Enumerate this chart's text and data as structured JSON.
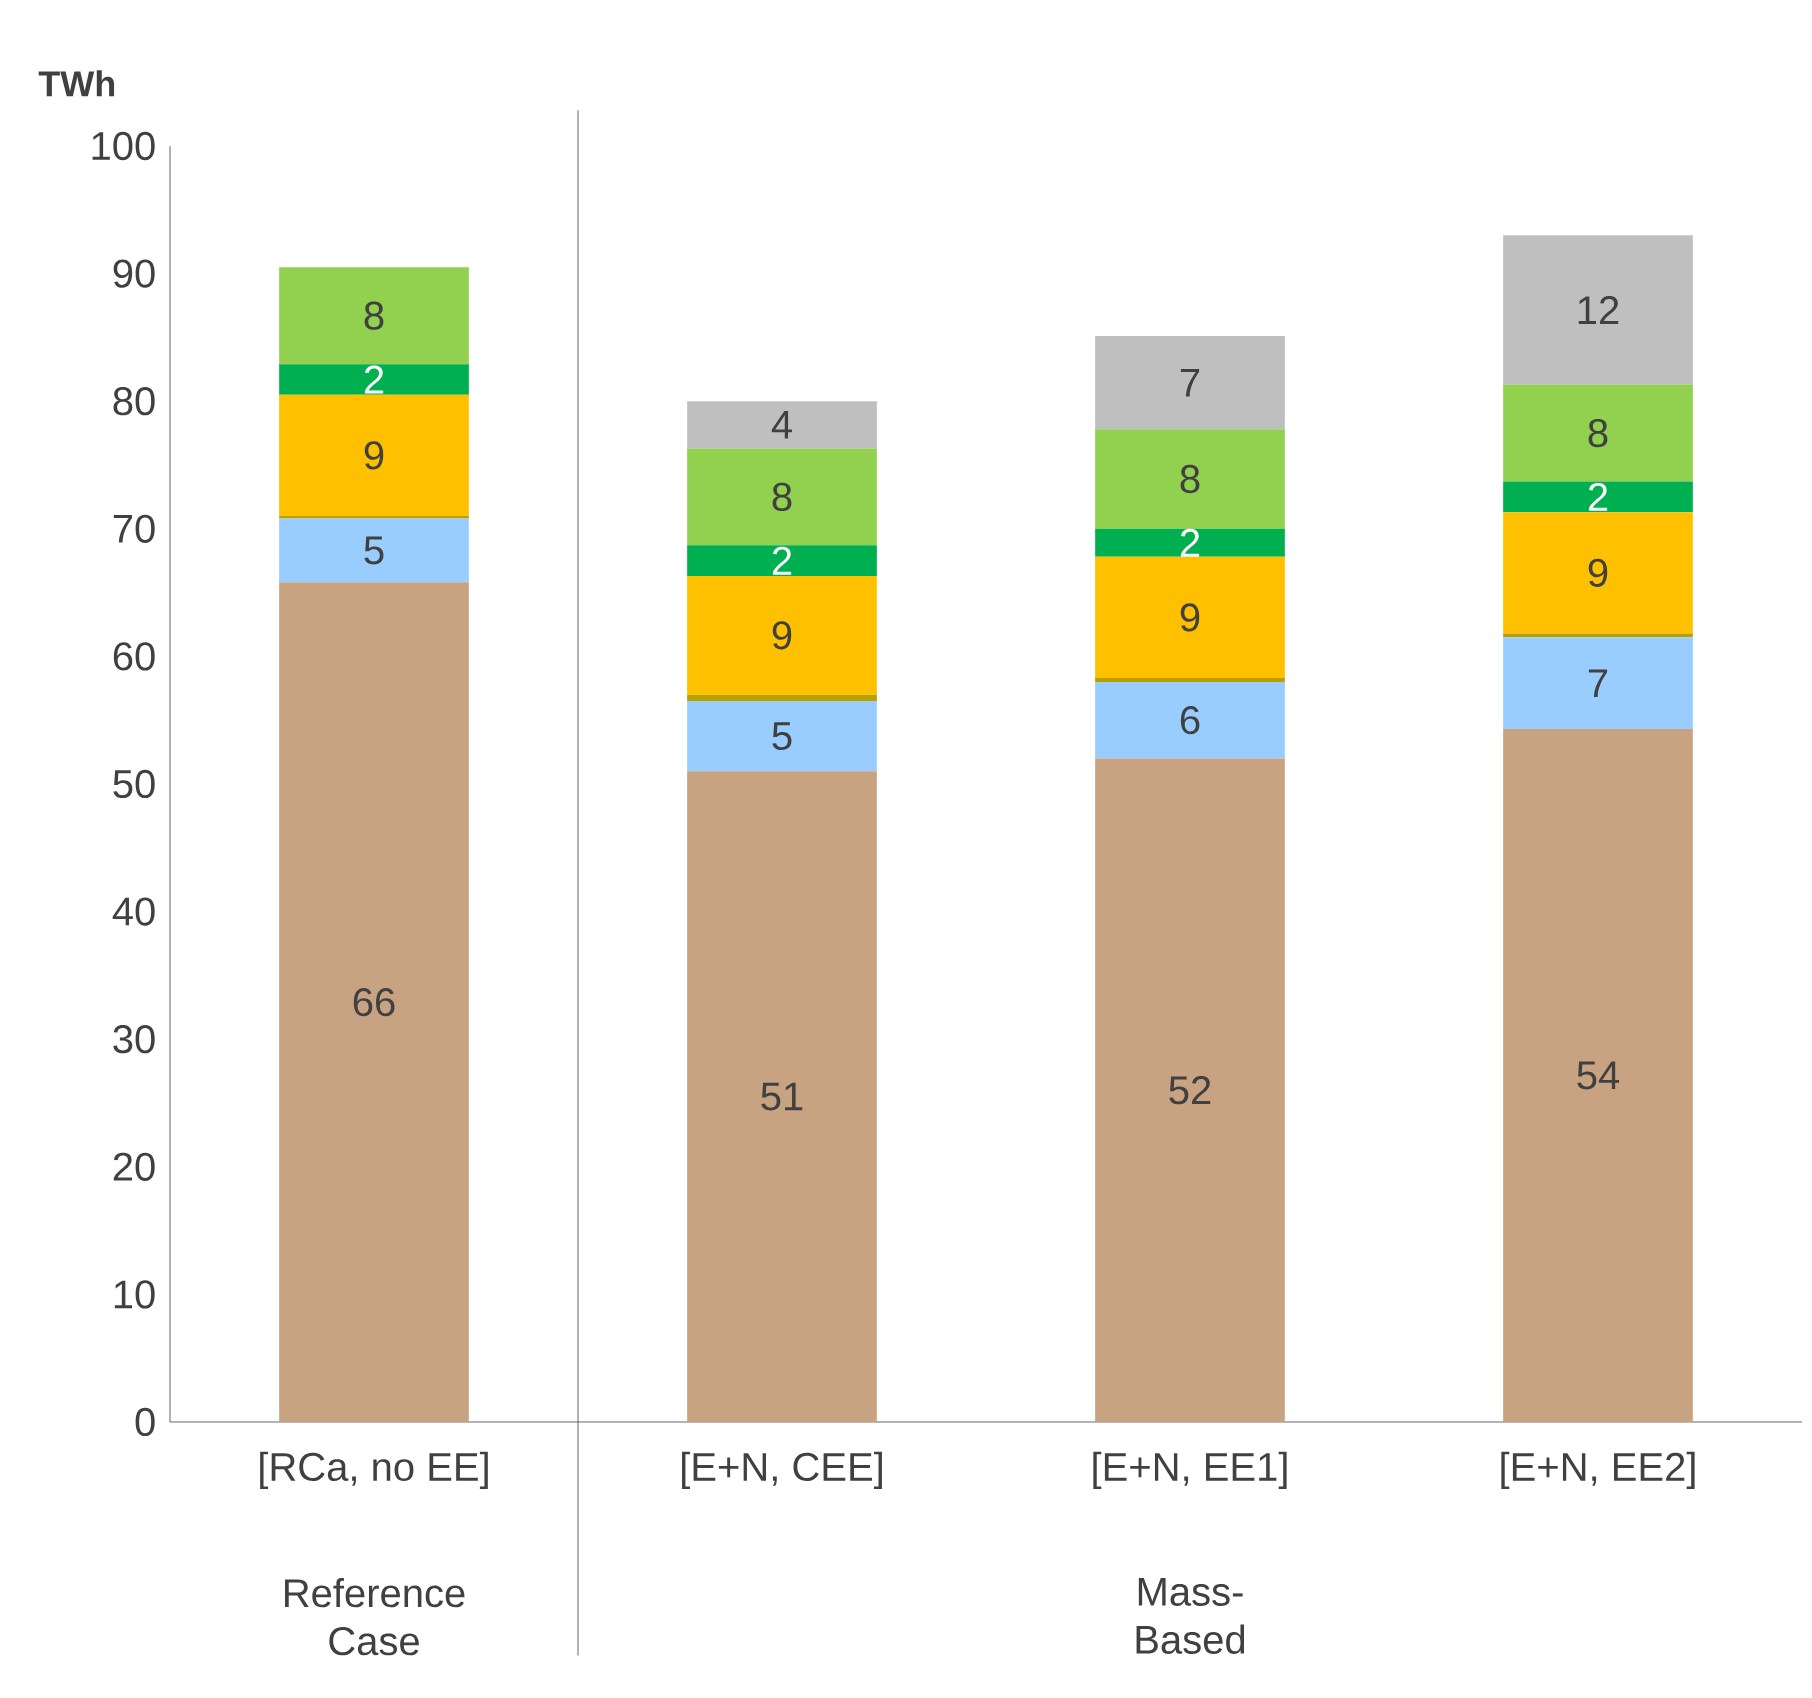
{
  "chart_data": {
    "type": "bar",
    "stacked": true,
    "ylabel": "TWh",
    "categories": [
      "[RCa, no EE]",
      "[E+N, CEE]",
      "[E+N, EE1]",
      "[E+N, EE2]"
    ],
    "ylim": [
      0,
      100
    ],
    "yticks": [
      0,
      10,
      20,
      30,
      40,
      50,
      60,
      70,
      80,
      90,
      100
    ],
    "series": [
      {
        "color": "#c8a382",
        "values": [
          65.8,
          51,
          52,
          54.3
        ],
        "value_labels": [
          "66",
          "51",
          "52",
          "54"
        ]
      },
      {
        "color": "#99ccff",
        "values": [
          5,
          5.5,
          6,
          7.2
        ],
        "value_labels": [
          "5",
          "5",
          "6",
          "7"
        ]
      },
      {
        "color": "#b8a000",
        "values": [
          0.2,
          0.5,
          0.3,
          0.3
        ],
        "value_labels": [
          null,
          null,
          null,
          null
        ]
      },
      {
        "color": "#ffc000",
        "values": [
          9.5,
          9.3,
          9.5,
          9.5
        ],
        "value_labels": [
          "9",
          "9",
          "9",
          "9"
        ]
      },
      {
        "color": "#00b050",
        "values": [
          2.4,
          2.4,
          2.2,
          2.4
        ],
        "value_labels": [
          "2",
          "2",
          "2",
          "2"
        ]
      },
      {
        "color": "#92d050",
        "values": [
          7.6,
          7.6,
          7.8,
          7.6
        ],
        "value_labels": [
          "8",
          "8",
          "8",
          "8"
        ]
      },
      {
        "color": "#bfbfbf",
        "values": [
          null,
          3.7,
          7.3,
          11.7
        ],
        "value_labels": [
          null,
          "4",
          "7",
          "12"
        ]
      }
    ],
    "annotations": [
      "Reference Case",
      "Mass-Based"
    ]
  }
}
